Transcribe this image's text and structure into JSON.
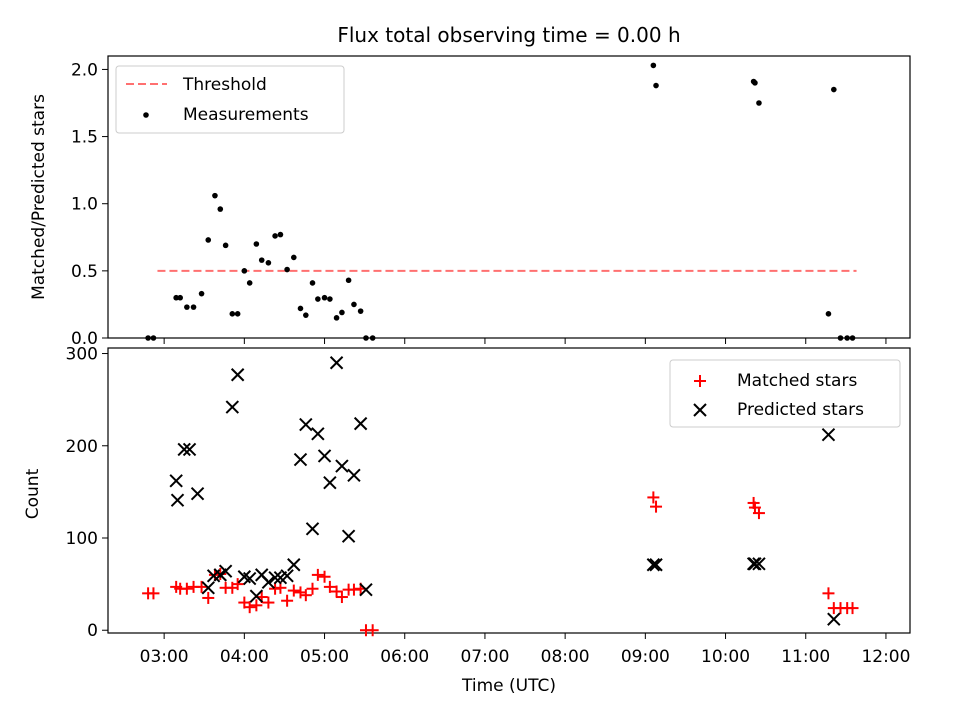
{
  "title": "Flux total observing time = 0.00 h",
  "colors": {
    "threshold": "#ff7070",
    "measurements": "#000000",
    "matched": "#ff0000",
    "predicted": "#000000"
  },
  "chart_data": [
    {
      "type": "scatter",
      "ylabel": "Matched/Predicted stars",
      "ylim": [
        0,
        2.1
      ],
      "yticks": [
        "0.0",
        "0.5",
        "1.0",
        "1.5",
        "2.0"
      ],
      "xlim": [
        "02:18",
        "12:18"
      ],
      "legend_position": "upper-left",
      "threshold": {
        "name": "Threshold",
        "value": 0.5,
        "x": [
          "02:55",
          "11:38"
        ]
      },
      "series": [
        {
          "name": "Measurements",
          "x": [
            "02:48",
            "02:52",
            "03:09",
            "03:12",
            "03:17",
            "03:22",
            "03:28",
            "03:33",
            "03:38",
            "03:42",
            "03:46",
            "03:51",
            "03:55",
            "04:00",
            "04:04",
            "04:09",
            "04:13",
            "04:18",
            "04:23",
            "04:27",
            "04:32",
            "04:37",
            "04:42",
            "04:46",
            "04:51",
            "04:55",
            "05:00",
            "05:04",
            "05:09",
            "05:13",
            "05:18",
            "05:22",
            "05:27",
            "05:31",
            "05:36",
            "09:06",
            "09:08",
            "10:21",
            "10:22",
            "10:25",
            "11:17",
            "11:21",
            "11:26",
            "11:31",
            "11:35"
          ],
          "y": [
            0.0,
            0.0,
            0.3,
            0.3,
            0.23,
            0.23,
            0.33,
            0.73,
            1.06,
            0.96,
            0.69,
            0.18,
            0.18,
            0.5,
            0.41,
            0.7,
            0.58,
            0.56,
            0.76,
            0.77,
            0.51,
            0.6,
            0.22,
            0.17,
            0.41,
            0.29,
            0.3,
            0.29,
            0.15,
            0.19,
            0.43,
            0.25,
            0.2,
            0.0,
            0.0,
            2.03,
            1.88,
            1.91,
            1.9,
            1.75,
            0.18,
            1.85,
            0.0,
            0.0,
            0.0
          ]
        }
      ]
    },
    {
      "type": "scatter",
      "xlabel": "Time (UTC)",
      "ylabel": "Count",
      "ylim": [
        0,
        300
      ],
      "yticks": [
        "0",
        "100",
        "200",
        "300"
      ],
      "xlim": [
        "02:18",
        "12:18"
      ],
      "xticks": [
        "03:00",
        "04:00",
        "05:00",
        "06:00",
        "07:00",
        "08:00",
        "09:00",
        "10:00",
        "11:00",
        "12:00"
      ],
      "legend_position": "upper-right",
      "series": [
        {
          "name": "Matched stars",
          "x": [
            "02:48",
            "02:52",
            "03:09",
            "03:12",
            "03:17",
            "03:22",
            "03:28",
            "03:33",
            "03:38",
            "03:42",
            "03:46",
            "03:51",
            "03:55",
            "04:00",
            "04:04",
            "04:09",
            "04:13",
            "04:18",
            "04:23",
            "04:27",
            "04:32",
            "04:37",
            "04:42",
            "04:46",
            "04:51",
            "04:55",
            "05:00",
            "05:04",
            "05:09",
            "05:13",
            "05:18",
            "05:22",
            "05:27",
            "05:31",
            "05:36",
            "09:06",
            "09:08",
            "10:21",
            "10:22",
            "10:25",
            "11:17",
            "11:21",
            "11:26",
            "11:31",
            "11:35"
          ],
          "y": [
            40,
            40,
            47,
            45,
            45,
            47,
            47,
            35,
            60,
            61,
            46,
            46,
            50,
            30,
            25,
            27,
            36,
            30,
            45,
            46,
            32,
            43,
            41,
            38,
            45,
            60,
            58,
            47,
            42,
            36,
            44,
            44,
            45,
            0,
            0,
            144,
            134,
            138,
            133,
            127,
            40,
            24,
            24,
            24,
            24
          ]
        },
        {
          "name": "Predicted stars",
          "x": [
            "03:09",
            "03:10",
            "03:15",
            "03:19",
            "03:25",
            "03:33",
            "03:37",
            "03:42",
            "03:46",
            "03:51",
            "03:55",
            "04:00",
            "04:04",
            "04:09",
            "04:13",
            "04:18",
            "04:23",
            "04:27",
            "04:32",
            "04:37",
            "04:42",
            "04:46",
            "04:51",
            "04:55",
            "05:00",
            "05:04",
            "05:09",
            "05:13",
            "05:18",
            "05:22",
            "05:27",
            "05:31",
            "09:06",
            "09:08",
            "10:21",
            "10:22",
            "10:25",
            "11:17",
            "11:21"
          ],
          "y": [
            162,
            141,
            196,
            196,
            148,
            46,
            59,
            60,
            64,
            242,
            277,
            58,
            56,
            37,
            60,
            52,
            57,
            57,
            59,
            71,
            185,
            223,
            110,
            213,
            189,
            160,
            290,
            178,
            102,
            168,
            224,
            44,
            71,
            71,
            72,
            72,
            72,
            212,
            12
          ]
        }
      ]
    }
  ]
}
